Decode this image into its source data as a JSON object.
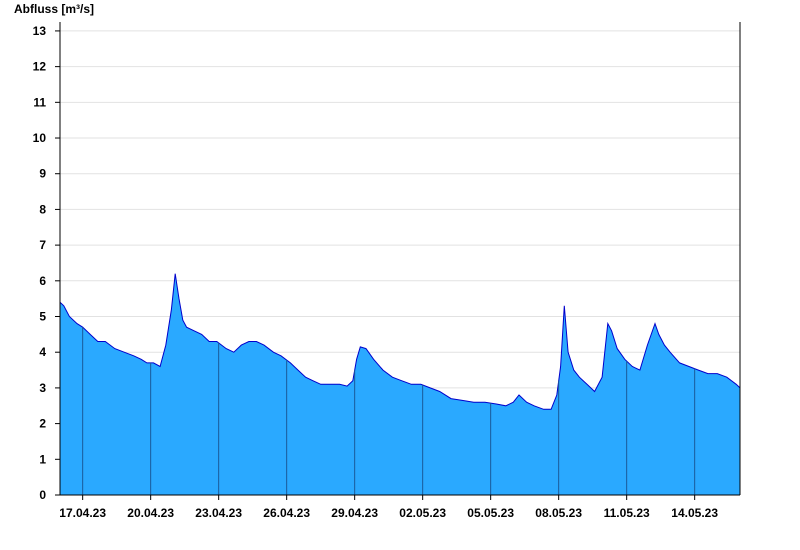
{
  "chart_data": {
    "type": "area",
    "title": "",
    "ylabel": "Abfluss [m³/s]",
    "xlabel": "",
    "ylim": [
      0,
      13.25
    ],
    "yticks": [
      0,
      1,
      2,
      3,
      4,
      5,
      6,
      7,
      8,
      9,
      10,
      11,
      12,
      13
    ],
    "xlim": [
      "2023-04-16",
      "2023-05-16"
    ],
    "xticks": [
      {
        "date": "2023-04-17",
        "label": "17.04.23"
      },
      {
        "date": "2023-04-20",
        "label": "20.04.23"
      },
      {
        "date": "2023-04-23",
        "label": "23.04.23"
      },
      {
        "date": "2023-04-26",
        "label": "26.04.23"
      },
      {
        "date": "2023-04-29",
        "label": "29.04.23"
      },
      {
        "date": "2023-05-02",
        "label": "02.05.23"
      },
      {
        "date": "2023-05-05",
        "label": "05.05.23"
      },
      {
        "date": "2023-05-08",
        "label": "08.05.23"
      },
      {
        "date": "2023-05-11",
        "label": "11.05.23"
      },
      {
        "date": "2023-05-14",
        "label": "14.05.23"
      }
    ],
    "grid": true,
    "colors": {
      "fill": "#2aa9ff",
      "line": "#0000cc",
      "grid": "#e2e2e2",
      "axis": "#000000",
      "day_marker": "#1a5a99"
    },
    "series": [
      {
        "x": [
          "2023-04-16 00:00",
          "2023-04-16 04:00",
          "2023-04-16 10:00",
          "2023-04-16 18:00",
          "2023-04-17 00:00",
          "2023-04-17 08:00",
          "2023-04-17 16:00",
          "2023-04-18 00:00",
          "2023-04-18 10:00",
          "2023-04-18 20:00",
          "2023-04-19 06:00",
          "2023-04-19 14:00",
          "2023-04-19 20:00",
          "2023-04-20 03:00",
          "2023-04-20 10:00",
          "2023-04-20 16:00",
          "2023-04-20 22:00",
          "2023-04-21 02:00",
          "2023-04-21 06:00",
          "2023-04-21 10:00",
          "2023-04-21 14:00",
          "2023-04-21 22:00",
          "2023-04-22 06:00",
          "2023-04-22 14:00",
          "2023-04-22 22:00",
          "2023-04-23 08:00",
          "2023-04-23 16:00",
          "2023-04-24 00:00",
          "2023-04-24 08:00",
          "2023-04-24 16:00",
          "2023-04-25 00:00",
          "2023-04-25 10:00",
          "2023-04-25 18:00",
          "2023-04-26 04:00",
          "2023-04-26 12:00",
          "2023-04-26 20:00",
          "2023-04-27 04:00",
          "2023-04-27 12:00",
          "2023-04-27 22:00",
          "2023-04-28 08:00",
          "2023-04-28 16:00",
          "2023-04-28 22:00",
          "2023-04-29 02:00",
          "2023-04-29 06:00",
          "2023-04-29 12:00",
          "2023-04-29 20:00",
          "2023-04-30 06:00",
          "2023-04-30 16:00",
          "2023-05-01 02:00",
          "2023-05-01 12:00",
          "2023-05-01 22:00",
          "2023-05-02 08:00",
          "2023-05-02 18:00",
          "2023-05-03 06:00",
          "2023-05-03 18:00",
          "2023-05-04 06:00",
          "2023-05-04 18:00",
          "2023-05-05 06:00",
          "2023-05-05 16:00",
          "2023-05-06 00:00",
          "2023-05-06 06:00",
          "2023-05-06 14:00",
          "2023-05-06 22:00",
          "2023-05-07 08:00",
          "2023-05-07 16:00",
          "2023-05-07 22:00",
          "2023-05-08 02:00",
          "2023-05-08 06:00",
          "2023-05-08 10:00",
          "2023-05-08 16:00",
          "2023-05-08 22:00",
          "2023-05-09 06:00",
          "2023-05-09 14:00",
          "2023-05-09 22:00",
          "2023-05-10 04:00",
          "2023-05-10 08:00",
          "2023-05-10 14:00",
          "2023-05-10 22:00",
          "2023-05-11 06:00",
          "2023-05-11 14:00",
          "2023-05-11 22:00",
          "2023-05-12 06:00",
          "2023-05-12 10:00",
          "2023-05-12 16:00",
          "2023-05-12 22:00",
          "2023-05-13 08:00",
          "2023-05-13 18:00",
          "2023-05-14 04:00",
          "2023-05-14 14:00",
          "2023-05-15 00:00",
          "2023-05-15 10:00",
          "2023-05-15 20:00",
          "2023-05-16 00:00"
        ],
        "y": [
          5.4,
          5.3,
          5.0,
          4.8,
          4.7,
          4.5,
          4.3,
          4.3,
          4.1,
          4.0,
          3.9,
          3.8,
          3.7,
          3.7,
          3.6,
          4.2,
          5.2,
          6.2,
          5.5,
          4.9,
          4.7,
          4.6,
          4.5,
          4.3,
          4.3,
          4.1,
          4.0,
          4.2,
          4.3,
          4.3,
          4.2,
          4.0,
          3.9,
          3.7,
          3.5,
          3.3,
          3.2,
          3.1,
          3.1,
          3.1,
          3.05,
          3.2,
          3.8,
          4.15,
          4.1,
          3.8,
          3.5,
          3.3,
          3.2,
          3.1,
          3.1,
          3.0,
          2.9,
          2.7,
          2.65,
          2.6,
          2.6,
          2.55,
          2.5,
          2.6,
          2.8,
          2.6,
          2.5,
          2.4,
          2.4,
          2.8,
          3.6,
          5.3,
          4.0,
          3.5,
          3.3,
          3.1,
          2.9,
          3.3,
          4.8,
          4.6,
          4.1,
          3.8,
          3.6,
          3.5,
          4.2,
          4.8,
          4.5,
          4.2,
          4.0,
          3.7,
          3.6,
          3.5,
          3.4,
          3.4,
          3.3,
          3.1,
          3.0
        ]
      }
    ]
  }
}
